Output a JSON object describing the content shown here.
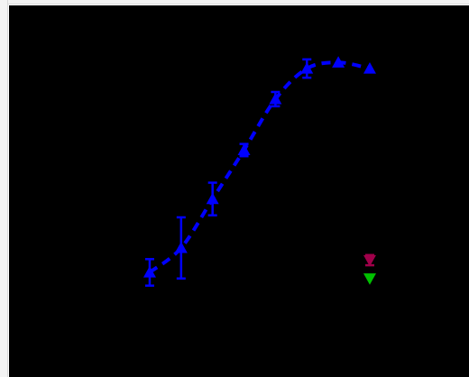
{
  "chart_data": {
    "type": "scatter",
    "background_color": "#000000",
    "grid": false,
    "legend": "none",
    "series": [
      {
        "color": "#0000ff",
        "marker": "triangle-up",
        "line_style": "dashed",
        "points": [
          {
            "x": 1,
            "y": 0.0,
            "err": 0.13
          },
          {
            "x": 2,
            "y": 0.12,
            "err": 0.3
          },
          {
            "x": 3,
            "y": 0.36,
            "err": 0.16
          },
          {
            "x": 4,
            "y": 0.6,
            "err": 0.06
          },
          {
            "x": 5,
            "y": 0.85,
            "err": 0.07
          },
          {
            "x": 6,
            "y": 1.0,
            "err": 0.09
          },
          {
            "x": 7,
            "y": 1.03,
            "err": 0.0
          },
          {
            "x": 8,
            "y": 1.0,
            "err": 0.0
          }
        ]
      },
      {
        "color": "#a0004a",
        "marker": "triangle-down",
        "line_style": "none",
        "points": [
          {
            "x": 8,
            "y": 0.06,
            "err": 0.05
          }
        ]
      },
      {
        "color": "#00c000",
        "marker": "triangle-down",
        "line_style": "none",
        "points": [
          {
            "x": 8,
            "y": -0.03,
            "err": 0
          }
        ]
      }
    ],
    "xlim": [
      0,
      10
    ],
    "ylim": [
      -0.5,
      1.3
    ]
  }
}
